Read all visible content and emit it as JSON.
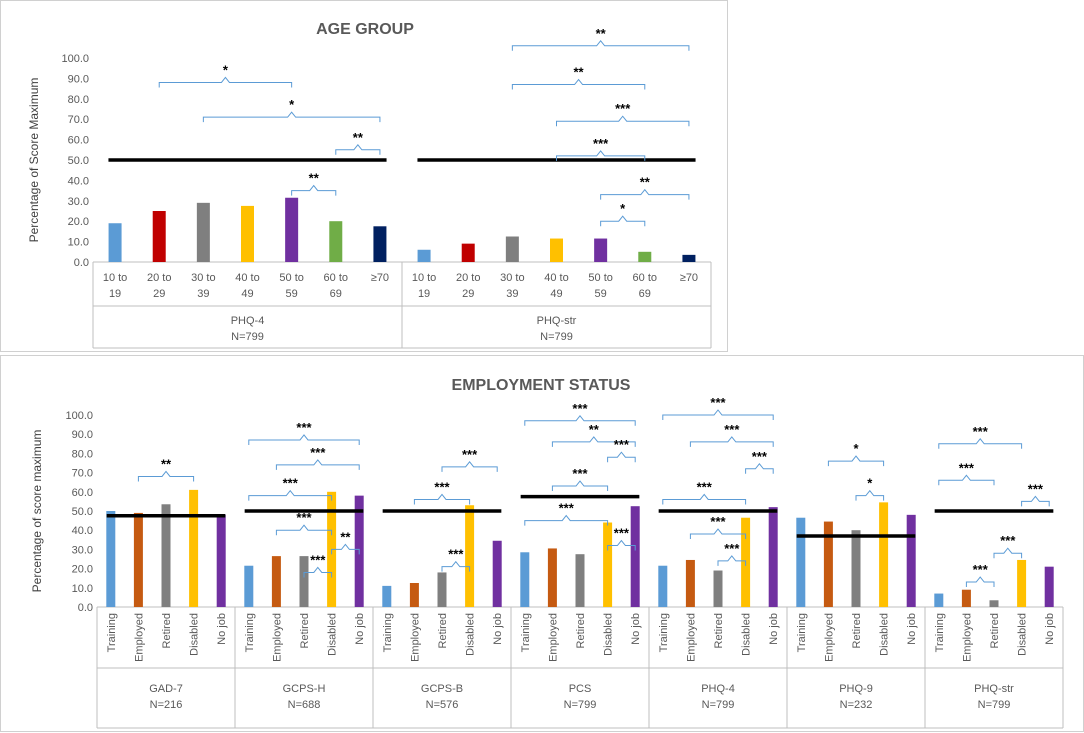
{
  "colors": {
    "blue": "#5b9bd5",
    "red": "#c00000",
    "orange": "#c55a11",
    "gray": "#7f7f7f",
    "yellow": "#ffc000",
    "purple": "#7030a0",
    "green": "#70ad47",
    "navy": "#002060"
  },
  "chart_data": [
    {
      "type": "bar",
      "title": "AGE GROUP",
      "ylabel": "Percentage of Score Maximum",
      "ylim": [
        0,
        100
      ],
      "yticks": [
        "0.0",
        "10.0",
        "20.0",
        "30.0",
        "40.0",
        "50.0",
        "60.0",
        "70.0",
        "80.0",
        "90.0",
        "100.0"
      ],
      "categories": [
        [
          "10 to",
          "19"
        ],
        [
          "20 to",
          "29"
        ],
        [
          "30 to",
          "39"
        ],
        [
          "40 to",
          "49"
        ],
        [
          "50 to",
          "59"
        ],
        [
          "60 to",
          "69"
        ],
        [
          "≥70"
        ]
      ],
      "bar_colors": [
        "blue",
        "red",
        "gray",
        "yellow",
        "purple",
        "green",
        "navy"
      ],
      "groups": [
        {
          "name": "PHQ-4",
          "n": "N=799",
          "values": [
            19,
            25,
            29,
            27.5,
            31.5,
            20,
            17.5
          ],
          "reference": 50,
          "ref_span": [
            0,
            6
          ],
          "comparisons": [
            {
              "from": 1,
              "to": 4,
              "label": "*",
              "y": 88
            },
            {
              "from": 2,
              "to": 6,
              "label": "*",
              "y": 71
            },
            {
              "from": 5,
              "to": 6,
              "label": "**",
              "y": 55
            },
            {
              "from": 4,
              "to": 5,
              "label": "**",
              "y": 35
            }
          ]
        },
        {
          "name": "PHQ-str",
          "n": "N=799",
          "values": [
            6,
            9,
            12.5,
            11.5,
            11.5,
            5,
            3.5
          ],
          "reference": 50,
          "ref_span": [
            0,
            6
          ],
          "comparisons": [
            {
              "from": 2,
              "to": 6,
              "label": "**",
              "y": 106
            },
            {
              "from": 2,
              "to": 5,
              "label": "**",
              "y": 87
            },
            {
              "from": 3,
              "to": 6,
              "label": "***",
              "y": 69
            },
            {
              "from": 3,
              "to": 5,
              "label": "***",
              "y": 52
            },
            {
              "from": 4,
              "to": 6,
              "label": "**",
              "y": 33
            },
            {
              "from": 4,
              "to": 5,
              "label": "*",
              "y": 20
            }
          ]
        }
      ]
    },
    {
      "type": "bar",
      "title": "EMPLOYMENT STATUS",
      "ylabel": "Percentage of score maximum",
      "ylim": [
        0,
        100
      ],
      "yticks": [
        "0.0",
        "10.0",
        "20.0",
        "30.0",
        "40.0",
        "50.0",
        "60.0",
        "70.0",
        "80.0",
        "90.0",
        "100.0"
      ],
      "categories": [
        "Training",
        "Employed",
        "Retired",
        "Disabled",
        "No job"
      ],
      "bar_colors": [
        "blue",
        "orange",
        "gray",
        "yellow",
        "purple"
      ],
      "groups": [
        {
          "name": "GAD-7",
          "n": "N=216",
          "values": [
            50,
            49,
            53.5,
            61,
            48
          ],
          "reference": 47.5,
          "ref_span": [
            0,
            4
          ],
          "comparisons": [
            {
              "from": 1,
              "to": 3,
              "label": "**",
              "y": 68
            }
          ]
        },
        {
          "name": "GCPS-H",
          "n": "N=688",
          "values": [
            21.5,
            26.5,
            26.5,
            60,
            58
          ],
          "reference": 50,
          "ref_span": [
            0,
            4
          ],
          "comparisons": [
            {
              "from": 0,
              "to": 4,
              "label": "***",
              "y": 87
            },
            {
              "from": 1,
              "to": 4,
              "label": "***",
              "y": 74
            },
            {
              "from": 0,
              "to": 3,
              "label": "***",
              "y": 58
            },
            {
              "from": 1,
              "to": 3,
              "label": "***",
              "y": 40
            },
            {
              "from": 3,
              "to": 4,
              "label": "**",
              "y": 30
            },
            {
              "from": 2,
              "to": 3,
              "label": "***",
              "y": 18
            }
          ]
        },
        {
          "name": "GCPS-B",
          "n": "N=576",
          "values": [
            11,
            12.5,
            18,
            53,
            34.5
          ],
          "reference": 50,
          "ref_span": [
            0,
            4
          ],
          "comparisons": [
            {
              "from": 2,
              "to": 4,
              "label": "***",
              "y": 73
            },
            {
              "from": 1,
              "to": 3,
              "label": "***",
              "y": 56
            },
            {
              "from": 2,
              "to": 3,
              "label": "***",
              "y": 21
            }
          ]
        },
        {
          "name": "PCS",
          "n": "N=799",
          "values": [
            28.5,
            30.5,
            27.5,
            44,
            52.5
          ],
          "reference": 57.5,
          "ref_span": [
            0,
            4
          ],
          "comparisons": [
            {
              "from": 0,
              "to": 4,
              "label": "***",
              "y": 97
            },
            {
              "from": 1,
              "to": 4,
              "label": "**",
              "y": 86
            },
            {
              "from": 3,
              "to": 4,
              "label": "***",
              "y": 78
            },
            {
              "from": 1,
              "to": 3,
              "label": "***",
              "y": 63
            },
            {
              "from": 0,
              "to": 3,
              "label": "***",
              "y": 45
            },
            {
              "from": 3,
              "to": 4,
              "label": "***",
              "y": 32
            }
          ]
        },
        {
          "name": "PHQ-4",
          "n": "N=799",
          "values": [
            21.5,
            24.5,
            19,
            46.5,
            52
          ],
          "reference": 50,
          "ref_span": [
            0,
            4
          ],
          "comparisons": [
            {
              "from": 0,
              "to": 4,
              "label": "***",
              "y": 100
            },
            {
              "from": 1,
              "to": 4,
              "label": "***",
              "y": 86
            },
            {
              "from": 3,
              "to": 4,
              "label": "***",
              "y": 72
            },
            {
              "from": 0,
              "to": 3,
              "label": "***",
              "y": 56
            },
            {
              "from": 1,
              "to": 3,
              "label": "***",
              "y": 38
            },
            {
              "from": 2,
              "to": 3,
              "label": "***",
              "y": 24
            }
          ]
        },
        {
          "name": "PHQ-9",
          "n": "N=232",
          "values": [
            46.5,
            44.5,
            40,
            54.5,
            48
          ],
          "reference": 37,
          "ref_span": [
            0,
            4
          ],
          "comparisons": [
            {
              "from": 1,
              "to": 3,
              "label": "*",
              "y": 76
            },
            {
              "from": 2,
              "to": 3,
              "label": "*",
              "y": 58
            }
          ]
        },
        {
          "name": "PHQ-str",
          "n": "N=799",
          "values": [
            7,
            9,
            3.5,
            24.5,
            21
          ],
          "reference": 50,
          "ref_span": [
            0,
            4
          ],
          "comparisons": [
            {
              "from": 0,
              "to": 3,
              "label": "***",
              "y": 85
            },
            {
              "from": 0,
              "to": 2,
              "label": "***",
              "y": 66
            },
            {
              "from": 3,
              "to": 4,
              "label": "***",
              "y": 55
            },
            {
              "from": 2,
              "to": 3,
              "label": "***",
              "y": 28
            },
            {
              "from": 1,
              "to": 2,
              "label": "***",
              "y": 13
            }
          ]
        }
      ]
    }
  ]
}
